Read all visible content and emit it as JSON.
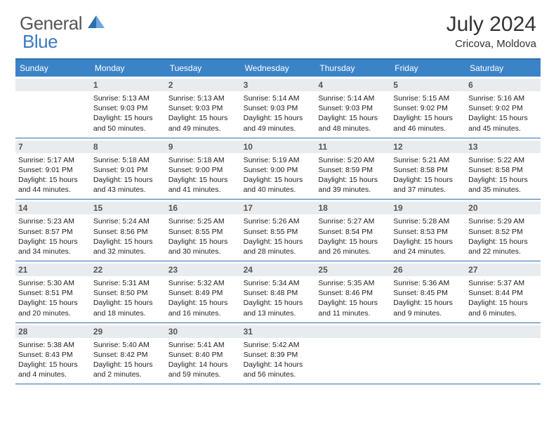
{
  "logo": {
    "text_general": "General",
    "text_blue": "Blue"
  },
  "title": {
    "month": "July 2024",
    "location": "Cricova, Moldova"
  },
  "colors": {
    "header_bg": "#3b83c7",
    "header_border": "#2f6fad",
    "daynum_bg": "#e9ecef",
    "logo_blue": "#3b7bbf",
    "text": "#333333"
  },
  "day_names": [
    "Sunday",
    "Monday",
    "Tuesday",
    "Wednesday",
    "Thursday",
    "Friday",
    "Saturday"
  ],
  "weeks": [
    [
      {
        "num": "",
        "sunrise": "",
        "sunset": "",
        "daylight": ""
      },
      {
        "num": "1",
        "sunrise": "5:13 AM",
        "sunset": "9:03 PM",
        "daylight": "15 hours and 50 minutes."
      },
      {
        "num": "2",
        "sunrise": "5:13 AM",
        "sunset": "9:03 PM",
        "daylight": "15 hours and 49 minutes."
      },
      {
        "num": "3",
        "sunrise": "5:14 AM",
        "sunset": "9:03 PM",
        "daylight": "15 hours and 49 minutes."
      },
      {
        "num": "4",
        "sunrise": "5:14 AM",
        "sunset": "9:03 PM",
        "daylight": "15 hours and 48 minutes."
      },
      {
        "num": "5",
        "sunrise": "5:15 AM",
        "sunset": "9:02 PM",
        "daylight": "15 hours and 46 minutes."
      },
      {
        "num": "6",
        "sunrise": "5:16 AM",
        "sunset": "9:02 PM",
        "daylight": "15 hours and 45 minutes."
      }
    ],
    [
      {
        "num": "7",
        "sunrise": "5:17 AM",
        "sunset": "9:01 PM",
        "daylight": "15 hours and 44 minutes."
      },
      {
        "num": "8",
        "sunrise": "5:18 AM",
        "sunset": "9:01 PM",
        "daylight": "15 hours and 43 minutes."
      },
      {
        "num": "9",
        "sunrise": "5:18 AM",
        "sunset": "9:00 PM",
        "daylight": "15 hours and 41 minutes."
      },
      {
        "num": "10",
        "sunrise": "5:19 AM",
        "sunset": "9:00 PM",
        "daylight": "15 hours and 40 minutes."
      },
      {
        "num": "11",
        "sunrise": "5:20 AM",
        "sunset": "8:59 PM",
        "daylight": "15 hours and 39 minutes."
      },
      {
        "num": "12",
        "sunrise": "5:21 AM",
        "sunset": "8:58 PM",
        "daylight": "15 hours and 37 minutes."
      },
      {
        "num": "13",
        "sunrise": "5:22 AM",
        "sunset": "8:58 PM",
        "daylight": "15 hours and 35 minutes."
      }
    ],
    [
      {
        "num": "14",
        "sunrise": "5:23 AM",
        "sunset": "8:57 PM",
        "daylight": "15 hours and 34 minutes."
      },
      {
        "num": "15",
        "sunrise": "5:24 AM",
        "sunset": "8:56 PM",
        "daylight": "15 hours and 32 minutes."
      },
      {
        "num": "16",
        "sunrise": "5:25 AM",
        "sunset": "8:55 PM",
        "daylight": "15 hours and 30 minutes."
      },
      {
        "num": "17",
        "sunrise": "5:26 AM",
        "sunset": "8:55 PM",
        "daylight": "15 hours and 28 minutes."
      },
      {
        "num": "18",
        "sunrise": "5:27 AM",
        "sunset": "8:54 PM",
        "daylight": "15 hours and 26 minutes."
      },
      {
        "num": "19",
        "sunrise": "5:28 AM",
        "sunset": "8:53 PM",
        "daylight": "15 hours and 24 minutes."
      },
      {
        "num": "20",
        "sunrise": "5:29 AM",
        "sunset": "8:52 PM",
        "daylight": "15 hours and 22 minutes."
      }
    ],
    [
      {
        "num": "21",
        "sunrise": "5:30 AM",
        "sunset": "8:51 PM",
        "daylight": "15 hours and 20 minutes."
      },
      {
        "num": "22",
        "sunrise": "5:31 AM",
        "sunset": "8:50 PM",
        "daylight": "15 hours and 18 minutes."
      },
      {
        "num": "23",
        "sunrise": "5:32 AM",
        "sunset": "8:49 PM",
        "daylight": "15 hours and 16 minutes."
      },
      {
        "num": "24",
        "sunrise": "5:34 AM",
        "sunset": "8:48 PM",
        "daylight": "15 hours and 13 minutes."
      },
      {
        "num": "25",
        "sunrise": "5:35 AM",
        "sunset": "8:46 PM",
        "daylight": "15 hours and 11 minutes."
      },
      {
        "num": "26",
        "sunrise": "5:36 AM",
        "sunset": "8:45 PM",
        "daylight": "15 hours and 9 minutes."
      },
      {
        "num": "27",
        "sunrise": "5:37 AM",
        "sunset": "8:44 PM",
        "daylight": "15 hours and 6 minutes."
      }
    ],
    [
      {
        "num": "28",
        "sunrise": "5:38 AM",
        "sunset": "8:43 PM",
        "daylight": "15 hours and 4 minutes."
      },
      {
        "num": "29",
        "sunrise": "5:40 AM",
        "sunset": "8:42 PM",
        "daylight": "15 hours and 2 minutes."
      },
      {
        "num": "30",
        "sunrise": "5:41 AM",
        "sunset": "8:40 PM",
        "daylight": "14 hours and 59 minutes."
      },
      {
        "num": "31",
        "sunrise": "5:42 AM",
        "sunset": "8:39 PM",
        "daylight": "14 hours and 56 minutes."
      },
      {
        "num": "",
        "sunrise": "",
        "sunset": "",
        "daylight": ""
      },
      {
        "num": "",
        "sunrise": "",
        "sunset": "",
        "daylight": ""
      },
      {
        "num": "",
        "sunrise": "",
        "sunset": "",
        "daylight": ""
      }
    ]
  ],
  "labels": {
    "sunrise": "Sunrise:",
    "sunset": "Sunset:",
    "daylight": "Daylight:"
  }
}
